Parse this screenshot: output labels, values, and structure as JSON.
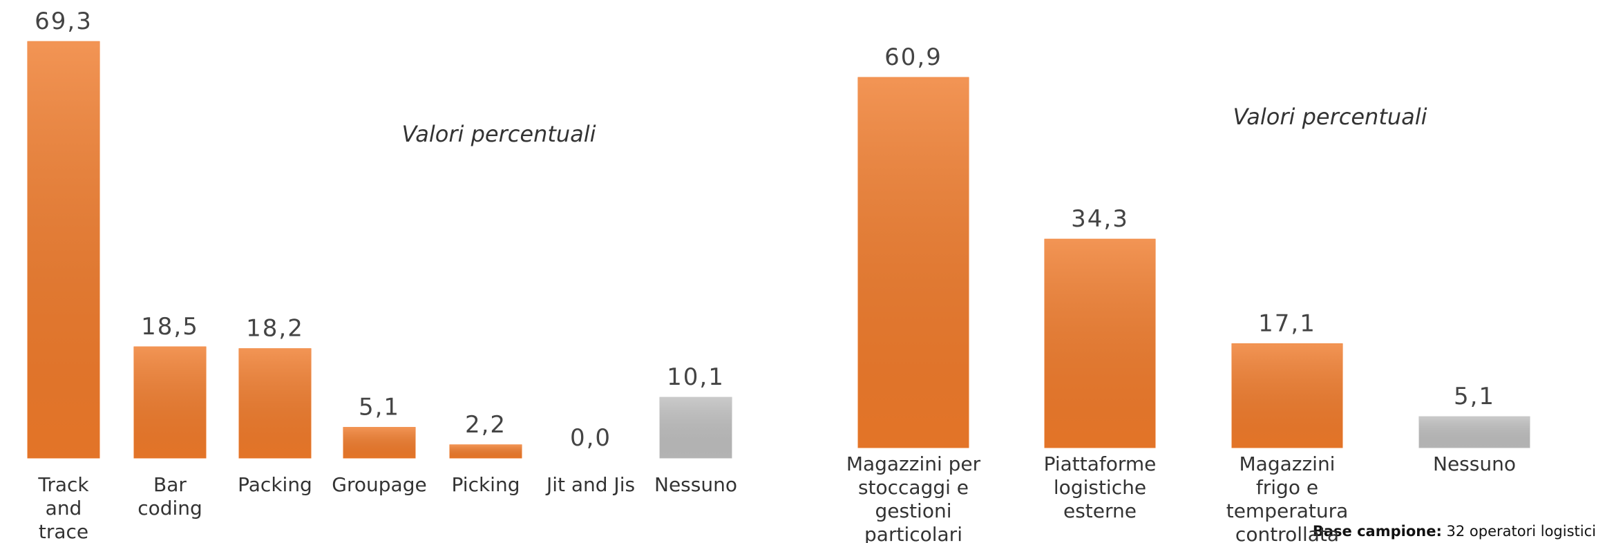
{
  "chart_data": [
    {
      "type": "bar",
      "subtitle": "Valori percentuali",
      "categories": [
        "Track and trace",
        "Bar coding",
        "Packing",
        "Groupage",
        "Picking",
        "Jit and Jis",
        "Nessuno"
      ],
      "values": [
        69.3,
        18.5,
        18.2,
        5.1,
        2.2,
        0.0,
        10.1
      ],
      "value_labels": [
        "69,3",
        "18,5",
        "18,2",
        "5,1",
        "2,2",
        "0,0",
        "10,1"
      ],
      "colors": [
        "#ef7a2a",
        "#ef7a2a",
        "#ef7a2a",
        "#ef7a2a",
        "#ef7a2a",
        "#ef7a2a",
        "#bdbdbd"
      ]
    },
    {
      "type": "bar",
      "subtitle": "Valori percentuali",
      "categories": [
        "Magazzini per stoccaggi e gestioni particolari",
        "Piattaforme logistiche esterne",
        "Magazzini frigo e temperatura controllata",
        "Nessuno"
      ],
      "values": [
        60.9,
        34.3,
        17.1,
        5.1
      ],
      "value_labels": [
        "60,9",
        "34,3",
        "17,1",
        "5,1"
      ],
      "colors": [
        "#ef7a2a",
        "#ef7a2a",
        "#ef7a2a",
        "#bdbdbd"
      ]
    }
  ],
  "footnote": {
    "label": "Base campione:",
    "text": "32 operatori logistici"
  }
}
